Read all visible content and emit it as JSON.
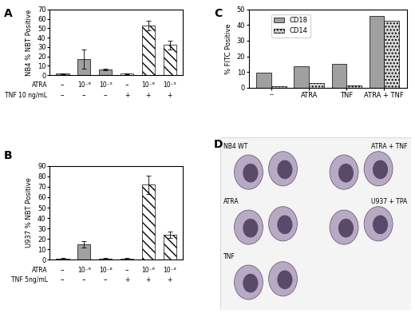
{
  "chart_data": [
    {
      "type": "bar",
      "title": "A",
      "y_label": "NB4 % NBT Positive",
      "rows": [
        {
          "name": "ATRA",
          "labels": [
            "--",
            "10⁻⁶",
            "10⁻⁹",
            "--",
            "10⁻⁶",
            "10⁻⁹"
          ]
        },
        {
          "name": "TNF 10 ng/mL",
          "labels": [
            "--",
            "--",
            "--",
            "+",
            "+",
            "+"
          ]
        }
      ],
      "values": [
        1.5,
        17,
        6,
        1.5,
        53,
        32
      ],
      "errors": [
        0.5,
        10,
        1,
        0.5,
        5,
        5
      ],
      "colors": [
        "#a0a0a0",
        "#a0a0a0",
        "#a0a0a0",
        "#ffffff",
        "#ffffff",
        "#ffffff"
      ],
      "ylim": [
        0,
        70
      ],
      "yticks": [
        0,
        10,
        20,
        30,
        40,
        50,
        60,
        70
      ]
    },
    {
      "type": "bar",
      "title": "B",
      "y_label": "U937 % NBT Positive",
      "rows": [
        {
          "name": "ATRA",
          "labels": [
            "--",
            "10⁻⁶",
            "10⁻⁸",
            "--",
            "10⁻⁶",
            "10⁻⁸"
          ]
        },
        {
          "name": "TNF 5ng/mL",
          "labels": [
            "--",
            "--",
            "--",
            "+",
            "+",
            "+"
          ]
        }
      ],
      "values": [
        1,
        15,
        1,
        1,
        72,
        24
      ],
      "errors": [
        0.5,
        3,
        0.5,
        0.5,
        9,
        3
      ],
      "colors": [
        "#a0a0a0",
        "#a0a0a0",
        "#a0a0a0",
        "#ffffff",
        "#ffffff",
        "#ffffff"
      ],
      "ylim": [
        0,
        90
      ],
      "yticks": [
        0,
        10,
        20,
        30,
        40,
        50,
        60,
        70,
        80,
        90
      ]
    },
    {
      "type": "bar",
      "title": "C",
      "y_label": "% FITC Positive",
      "categories": [
        "--",
        "ATRA",
        "TNF",
        "ATRA + TNF"
      ],
      "series": [
        {
          "name": "CD18",
          "color": "#a0a0a0",
          "values": [
            9.5,
            13.5,
            15,
            46
          ]
        },
        {
          "name": "CD14",
          "color": "#d8d8d8",
          "values": [
            1,
            3,
            1.5,
            42.5
          ]
        }
      ],
      "legend": "upper left",
      "ylim": [
        0,
        50
      ],
      "yticks": [
        0,
        10,
        20,
        30,
        40,
        50
      ]
    }
  ],
  "micrographs": {
    "title": "D",
    "panels": [
      {
        "label": "NB4 WT"
      },
      {
        "label": "ATRA + TNF"
      },
      {
        "label": "ATRA"
      },
      {
        "label": "U937 + TPA"
      },
      {
        "label": "TNF"
      }
    ]
  }
}
